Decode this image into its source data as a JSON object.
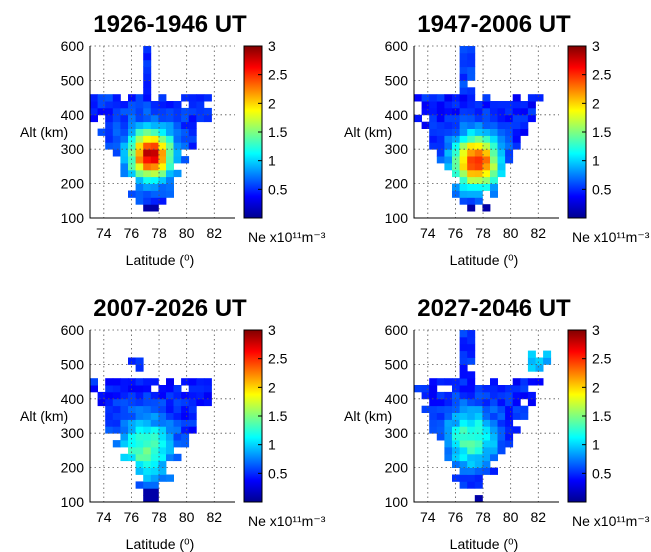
{
  "colorbar_label": "Ne x10¹¹m⁻³",
  "colorbar_ticks": [
    "0.5",
    "1",
    "1.5",
    "2",
    "2.5",
    "3"
  ],
  "colorbar_tick_values": [
    0.5,
    1,
    1.5,
    2,
    2.5,
    3
  ],
  "colormap": "jet",
  "chart_data": [
    {
      "type": "heatmap",
      "title": "1926-1946 UT",
      "xlabel": "Latitude (⁰)",
      "ylabel": "Alt (km)",
      "xticks": [
        "74",
        "76",
        "78",
        "80",
        "82"
      ],
      "yticks": [
        "100",
        "200",
        "300",
        "400",
        "500",
        "600"
      ],
      "xlim": [
        73,
        83.5
      ],
      "ylim": [
        100,
        600
      ],
      "clim": [
        0,
        3
      ],
      "grid": true,
      "peak": {
        "lat": 77.4,
        "alt": 285,
        "ne": 2.8,
        "spread_lat": 1.5,
        "spread_alt": 70
      },
      "background_ne": 0.5,
      "top_extension": [
        {
          "lat": [
            76.6,
            77.3
          ],
          "alt": [
            460,
            600
          ],
          "ne": 0.5
        }
      ]
    },
    {
      "type": "heatmap",
      "title": "1947-2006 UT",
      "xlabel": "Latitude (⁰)",
      "ylabel": "Alt (km)",
      "xticks": [
        "74",
        "76",
        "78",
        "80",
        "82"
      ],
      "yticks": [
        "100",
        "200",
        "300",
        "400",
        "500",
        "600"
      ],
      "xlim": [
        73,
        83.5
      ],
      "ylim": [
        100,
        600
      ],
      "clim": [
        0,
        3
      ],
      "grid": true,
      "peak": {
        "lat": 77.5,
        "alt": 265,
        "ne": 2.6,
        "spread_lat": 1.6,
        "spread_alt": 75
      },
      "background_ne": 0.45,
      "top_extension": [
        {
          "lat": [
            76.3,
            77.3
          ],
          "alt": [
            460,
            600
          ],
          "ne": 0.55
        }
      ]
    },
    {
      "type": "heatmap",
      "title": "2007-2026 UT",
      "xlabel": "Latitude (⁰)",
      "ylabel": "Alt (km)",
      "xticks": [
        "74",
        "76",
        "78",
        "80",
        "82"
      ],
      "yticks": [
        "100",
        "200",
        "300",
        "400",
        "500",
        "600"
      ],
      "xlim": [
        73,
        83.5
      ],
      "ylim": [
        100,
        600
      ],
      "clim": [
        0,
        3
      ],
      "grid": true,
      "peak": {
        "lat": 77.0,
        "alt": 255,
        "ne": 1.4,
        "spread_lat": 2.0,
        "spread_alt": 90
      },
      "background_ne": 0.45,
      "top_extension": [
        {
          "lat": [
            76.0,
            76.8
          ],
          "alt": [
            480,
            520
          ],
          "ne": 0.5
        }
      ]
    },
    {
      "type": "heatmap",
      "title": "2027-2046 UT",
      "xlabel": "Latitude (⁰)",
      "ylabel": "Alt (km)",
      "xticks": [
        "74",
        "76",
        "78",
        "80",
        "82"
      ],
      "yticks": [
        "100",
        "200",
        "300",
        "400",
        "500",
        "600"
      ],
      "xlim": [
        73,
        83.5
      ],
      "ylim": [
        100,
        600
      ],
      "clim": [
        0,
        3
      ],
      "grid": true,
      "peak": {
        "lat": 77.1,
        "alt": 285,
        "ne": 1.35,
        "spread_lat": 1.9,
        "spread_alt": 85
      },
      "background_ne": 0.45,
      "top_extension": [
        {
          "lat": [
            76.5,
            77.3
          ],
          "alt": [
            460,
            600
          ],
          "ne": 0.5
        },
        {
          "lat": [
            81.2,
            82.9
          ],
          "alt": [
            490,
            540
          ],
          "ne": 0.9
        }
      ]
    }
  ]
}
